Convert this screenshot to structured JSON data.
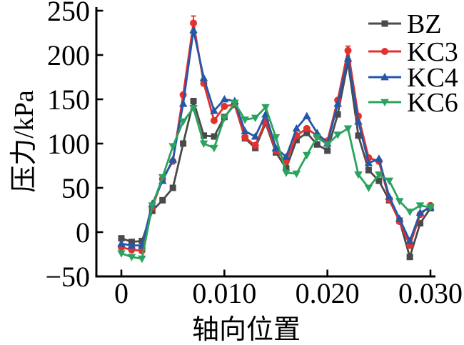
{
  "chart_data": {
    "type": "line",
    "title": "",
    "xlabel": "轴向位置",
    "ylabel": "压力/kPa",
    "xlim": [
      -0.0025,
      0.0305
    ],
    "ylim": [
      -50,
      250
    ],
    "grid": false,
    "legend_position": "top-right",
    "x_ticks": [
      0,
      0.01,
      0.02,
      0.03
    ],
    "x_tick_labels": [
      "0",
      "0.010",
      "0.020",
      "0.030"
    ],
    "y_ticks": [
      -50,
      0,
      50,
      100,
      150,
      200,
      250
    ],
    "y_tick_labels": [
      "−50",
      "0",
      "50",
      "100",
      "150",
      "200",
      "250"
    ],
    "x_start": 0,
    "x_step": 0.001,
    "x_end": 0.03,
    "series": [
      {
        "name": "BZ",
        "color": "#4a4a4a",
        "marker": "square",
        "values": [
          -7,
          -11,
          -10,
          24,
          36,
          50,
          100,
          148,
          109,
          108,
          130,
          144,
          106,
          95,
          123,
          90,
          72,
          104,
          112,
          99,
          92,
          133,
          192,
          109,
          70,
          58,
          36,
          13,
          -28,
          10,
          27
        ]
      },
      {
        "name": "KC3",
        "color": "#e2312e",
        "marker": "circle",
        "values": [
          -17,
          -20,
          -21,
          28,
          60,
          80,
          155,
          236,
          168,
          126,
          142,
          144,
          107,
          98,
          125,
          92,
          80,
          109,
          117,
          109,
          103,
          149,
          205,
          131,
          84,
          80,
          37,
          12,
          -15,
          20,
          30
        ]
      },
      {
        "name": "KC4",
        "color": "#2458a7",
        "marker": "triangle-up",
        "values": [
          -13,
          -15,
          -15,
          32,
          58,
          82,
          145,
          228,
          174,
          137,
          150,
          148,
          114,
          108,
          133,
          95,
          85,
          117,
          131,
          112,
          100,
          145,
          196,
          125,
          78,
          83,
          40,
          15,
          -10,
          22,
          28
        ]
      },
      {
        "name": "KC6",
        "color": "#2aa35e",
        "marker": "triangle-down",
        "values": [
          -24,
          -28,
          -30,
          30,
          62,
          97,
          125,
          140,
          100,
          95,
          129,
          146,
          127,
          129,
          141,
          107,
          67,
          66,
          87,
          107,
          99,
          110,
          117,
          65,
          50,
          65,
          58,
          35,
          23,
          30,
          28
        ]
      }
    ],
    "error_bars": [
      {
        "series": "KC3",
        "x": 0.007,
        "e": 8
      },
      {
        "series": "KC3",
        "x": 0.022,
        "e": 5
      }
    ]
  }
}
